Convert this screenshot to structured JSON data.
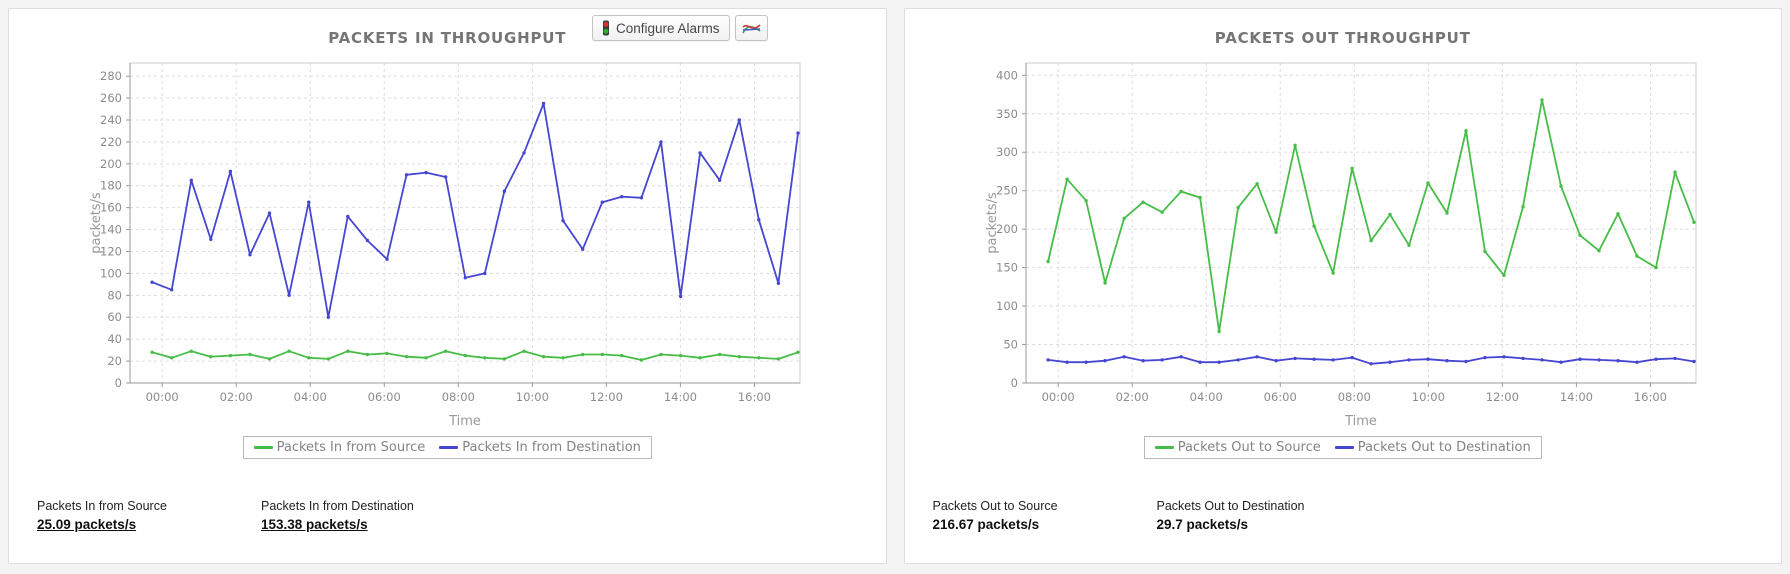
{
  "toolbar": {
    "configure_alarms_label": "Configure Alarms",
    "chart_type_icon": "line-chart-icon",
    "alarm_icon": "traffic-light-icon"
  },
  "colors": {
    "source_series_green": "#47bd47",
    "destination_series_blue": "#4646d2",
    "grid": "#dddddd",
    "axis_text": "#8c8c8c",
    "title_text": "#757575"
  },
  "chart_data": [
    {
      "type": "line",
      "title": "PACKETS IN THROUGHPUT",
      "ylabel": "packets/s",
      "xlabel": "Time",
      "ylim": [
        0,
        292
      ],
      "yticks": [
        0,
        20,
        40,
        60,
        80,
        100,
        120,
        140,
        160,
        180,
        200,
        220,
        240,
        260,
        280
      ],
      "xticklabels": [
        "00:00",
        "02:00",
        "04:00",
        "06:00",
        "08:00",
        "10:00",
        "12:00",
        "14:00",
        "16:00"
      ],
      "grid": true,
      "legend_position": "bottom",
      "series": [
        {
          "name": "Packets In from Source",
          "color": "#47bd47",
          "values": [
            28,
            23,
            29,
            24,
            25,
            26,
            22,
            29,
            23,
            22,
            29,
            26,
            27,
            24,
            23,
            29,
            25,
            23,
            22,
            29,
            24,
            23,
            26,
            26,
            25,
            21,
            26,
            25,
            23,
            26,
            24,
            23,
            22,
            28
          ]
        },
        {
          "name": "Packets In from Destination",
          "color": "#4646d2",
          "values": [
            92,
            85,
            185,
            131,
            193,
            117,
            155,
            80,
            165,
            60,
            152,
            130,
            113,
            190,
            192,
            188,
            96,
            100,
            175,
            210,
            255,
            148,
            122,
            165,
            170,
            169,
            220,
            79,
            210,
            185,
            240,
            149,
            91,
            228
          ]
        }
      ],
      "summary": [
        {
          "label": "Packets In from Source",
          "value": "25.09 packets/s",
          "underline": true
        },
        {
          "label": "Packets In from Destination",
          "value": "153.38 packets/s",
          "underline": true
        }
      ]
    },
    {
      "type": "line",
      "title": "PACKETS OUT THROUGHPUT",
      "ylabel": "packets/s",
      "xlabel": "Time",
      "ylim": [
        0,
        416
      ],
      "yticks": [
        0,
        50,
        100,
        150,
        200,
        250,
        300,
        350,
        400
      ],
      "xticklabels": [
        "00:00",
        "02:00",
        "04:00",
        "06:00",
        "08:00",
        "10:00",
        "12:00",
        "14:00",
        "16:00"
      ],
      "grid": true,
      "legend_position": "bottom",
      "series": [
        {
          "name": "Packets Out to Source",
          "color": "#47bd47",
          "values": [
            158,
            265,
            237,
            130,
            214,
            235,
            222,
            249,
            241,
            67,
            228,
            259,
            196,
            309,
            204,
            143,
            279,
            185,
            219,
            179,
            260,
            221,
            328,
            171,
            140,
            229,
            368,
            256,
            192,
            172,
            220,
            165,
            150,
            274,
            209
          ]
        },
        {
          "name": "Packets Out to Destination",
          "color": "#4646d2",
          "values": [
            30,
            27,
            27,
            29,
            34,
            29,
            30,
            34,
            27,
            27,
            30,
            34,
            29,
            32,
            31,
            30,
            33,
            25,
            27,
            30,
            31,
            29,
            28,
            33,
            34,
            32,
            30,
            27,
            31,
            30,
            29,
            27,
            31,
            32,
            28
          ]
        }
      ],
      "summary": [
        {
          "label": "Packets Out to Source",
          "value": "216.67 packets/s",
          "underline": false
        },
        {
          "label": "Packets Out to Destination",
          "value": "29.7 packets/s",
          "underline": false
        }
      ]
    }
  ]
}
